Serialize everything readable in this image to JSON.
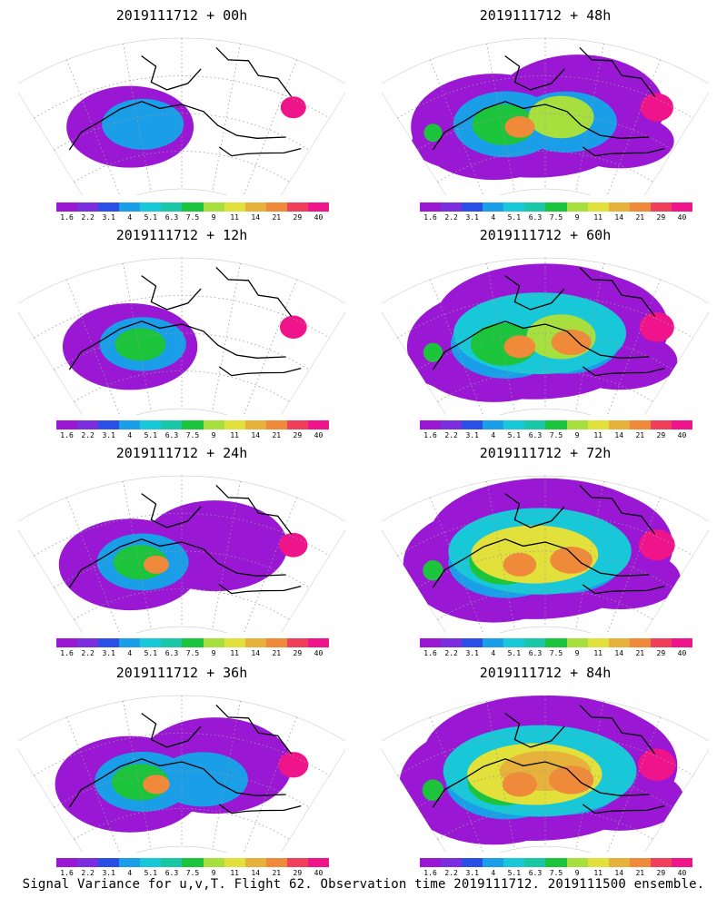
{
  "caption": "Signal Variance for u,v,T. Flight 62. Observation time 2019111712. 2019111500 ensemble.",
  "colorbar": {
    "labels": [
      "1.6",
      "2.2",
      "3.1",
      "4",
      "5.1",
      "6.3",
      "7.5",
      "9",
      "11",
      "14",
      "21",
      "29",
      "40"
    ],
    "colors": [
      "#9a17d4",
      "#7a2ee0",
      "#2a4fe6",
      "#1a9ee8",
      "#18c8d8",
      "#19c7a6",
      "#1bc43a",
      "#a7e03e",
      "#e2e03a",
      "#e6b23c",
      "#ef8a3a",
      "#ef3f5a",
      "#f0148a"
    ]
  },
  "panels": [
    {
      "title": "2019111712 + 00h",
      "level": 0
    },
    {
      "title": "2019111712 + 48h",
      "level": 5
    },
    {
      "title": "2019111712 + 12h",
      "level": 1
    },
    {
      "title": "2019111712 + 60h",
      "level": 6
    },
    {
      "title": "2019111712 + 24h",
      "level": 2
    },
    {
      "title": "2019111712 + 72h",
      "level": 7
    },
    {
      "title": "2019111712 + 36h",
      "level": 3
    },
    {
      "title": "2019111712 + 84h",
      "level": 8
    }
  ]
}
